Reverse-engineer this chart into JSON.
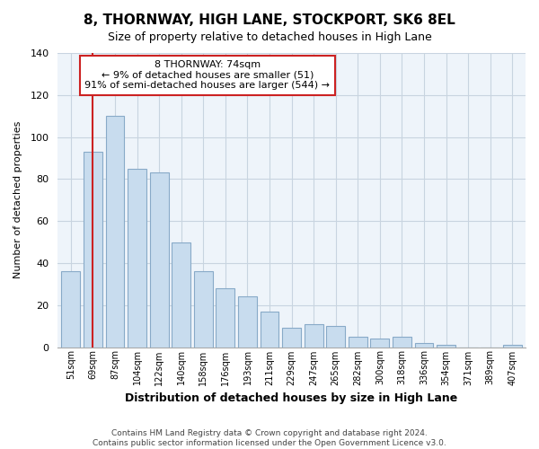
{
  "title": "8, THORNWAY, HIGH LANE, STOCKPORT, SK6 8EL",
  "subtitle": "Size of property relative to detached houses in High Lane",
  "xlabel": "Distribution of detached houses by size in High Lane",
  "ylabel": "Number of detached properties",
  "bar_color": "#c8dcee",
  "bar_edge_color": "#88aac8",
  "categories": [
    "51sqm",
    "69sqm",
    "87sqm",
    "104sqm",
    "122sqm",
    "140sqm",
    "158sqm",
    "176sqm",
    "193sqm",
    "211sqm",
    "229sqm",
    "247sqm",
    "265sqm",
    "282sqm",
    "300sqm",
    "318sqm",
    "336sqm",
    "354sqm",
    "371sqm",
    "389sqm",
    "407sqm"
  ],
  "values": [
    36,
    93,
    110,
    85,
    83,
    50,
    36,
    28,
    24,
    17,
    9,
    11,
    10,
    5,
    4,
    5,
    2,
    1,
    0,
    0,
    1
  ],
  "ylim": [
    0,
    140
  ],
  "yticks": [
    0,
    20,
    40,
    60,
    80,
    100,
    120,
    140
  ],
  "vline_x_index": 1.0,
  "vline_color": "#cc2222",
  "ann_line1": "8 THORNWAY: 74sqm",
  "ann_line2": "← 9% of detached houses are smaller (51)",
  "ann_line3": "91% of semi-detached houses are larger (544) →",
  "annotation_box_color": "#ffffff",
  "annotation_box_edge_color": "#cc2222",
  "footer_line1": "Contains HM Land Registry data © Crown copyright and database right 2024.",
  "footer_line2": "Contains public sector information licensed under the Open Government Licence v3.0.",
  "bg_color": "#eef4fa"
}
